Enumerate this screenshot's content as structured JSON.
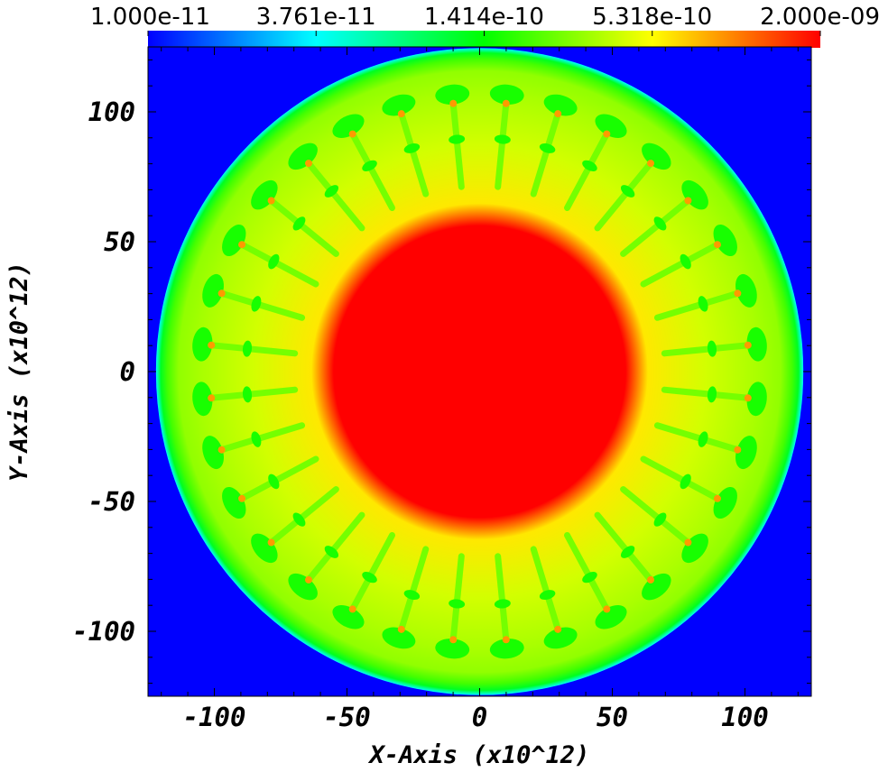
{
  "chart_data": {
    "type": "heatmap",
    "xlabel": "X-Axis (x10^12)",
    "ylabel": "Y-Axis (x10^12)",
    "xlim": [
      -125,
      125
    ],
    "ylim": [
      -125,
      125
    ],
    "x_ticks": [
      "-100",
      "-50",
      "0",
      "50",
      "100"
    ],
    "x_tick_values": [
      -100,
      -50,
      0,
      50,
      100
    ],
    "y_ticks": [
      "100",
      "50",
      "0",
      "-50",
      "-100"
    ],
    "y_tick_values": [
      100,
      50,
      0,
      -50,
      -100
    ],
    "colorbar": {
      "scale": "log",
      "range": [
        1e-11,
        2e-09
      ],
      "tick_labels": [
        "1.000e-11",
        "3.761e-11",
        "1.414e-10",
        "5.318e-10",
        "2.000e-09"
      ],
      "tick_values": [
        1e-11,
        3.761e-11,
        1.414e-10,
        5.318e-10,
        2e-09
      ],
      "colormap": [
        "#0000ff",
        "#00ffff",
        "#00ff00",
        "#ffff00",
        "#ff0000"
      ]
    },
    "field": {
      "core_value": 2e-09,
      "core_radius": 55,
      "shell_value": 5e-10,
      "finger_ring_radius": 105,
      "finger_count": 32,
      "finger_value": 1.6e-10,
      "outer_shell_radius": 122,
      "outer_shell_value": 1.2e-10,
      "background_value": 1e-11
    }
  }
}
